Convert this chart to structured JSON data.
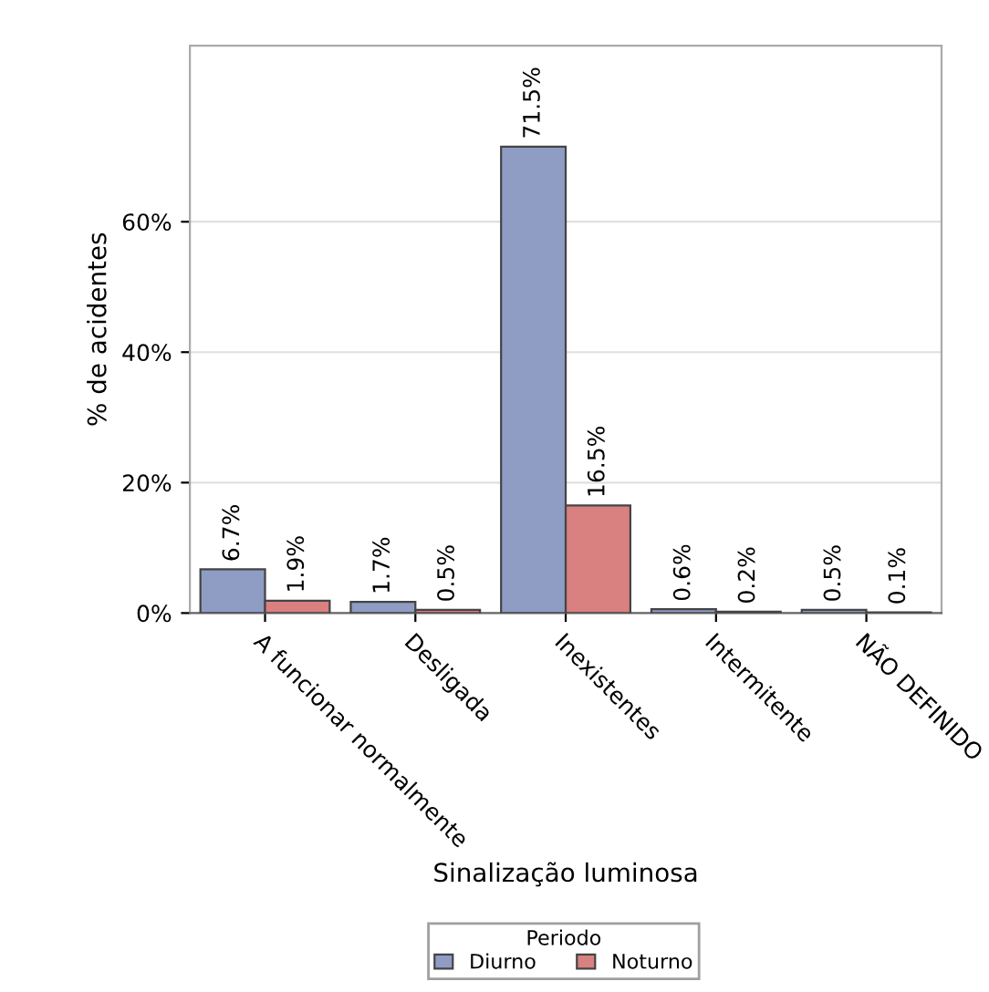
{
  "chart_data": {
    "type": "bar",
    "xlabel": "Sinalização luminosa",
    "ylabel": "% de acidentes",
    "legend_title": "Periodo",
    "categories": [
      "A funcionar normalmente",
      "Desligada",
      "Inexistentes",
      "Intermitente",
      "NÃO DEFINIDO"
    ],
    "series": [
      {
        "name": "Diurno",
        "color": "#8f9cc4",
        "values": [
          6.7,
          1.7,
          71.5,
          0.6,
          0.5
        ],
        "value_labels": [
          "6.7%",
          "1.7%",
          "71.5%",
          "0.6%",
          "0.5%"
        ]
      },
      {
        "name": "Noturno",
        "color": "#d98080",
        "values": [
          1.9,
          0.5,
          16.5,
          0.2,
          0.1
        ],
        "value_labels": [
          "1.9%",
          "0.5%",
          "16.5%",
          "0.2%",
          "0.1%"
        ]
      }
    ],
    "ylim": [
      0,
      87
    ],
    "yticks": [
      {
        "value": 0,
        "label": "0%"
      },
      {
        "value": 20,
        "label": "20%"
      },
      {
        "value": 40,
        "label": "40%"
      },
      {
        "value": 60,
        "label": "60%"
      }
    ],
    "grid": "y",
    "legend": "bottom"
  }
}
